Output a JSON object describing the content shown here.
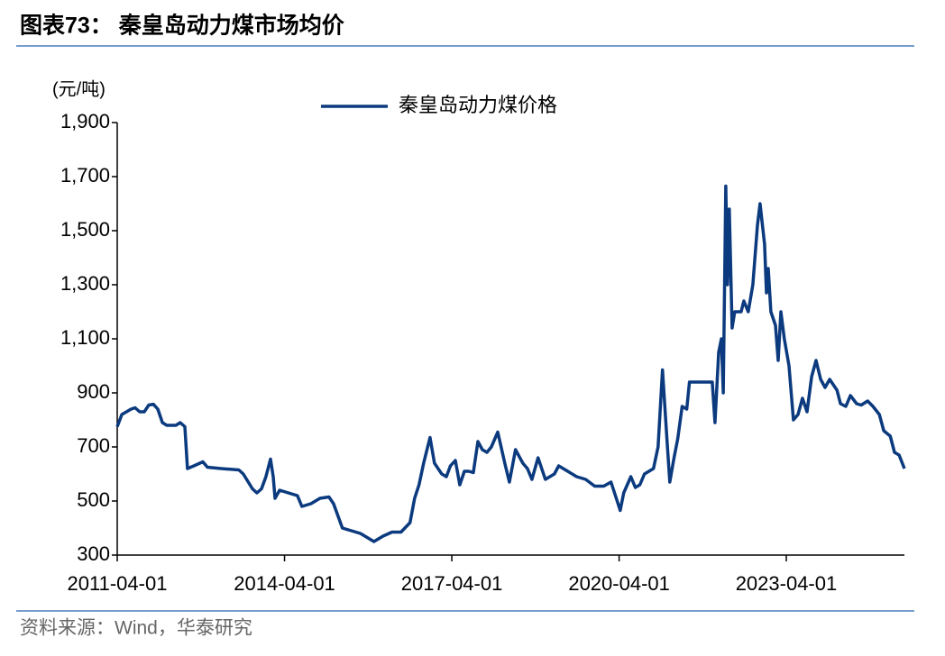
{
  "chart_data": {
    "type": "line",
    "title": "图表73：  秦皇岛动力煤市场均价",
    "y_label": "(元/吨)",
    "source": "资料来源：Wind，华泰研究",
    "x": [
      "2011-04-01",
      "2011-05-01",
      "2011-07-01",
      "2011-07-27",
      "2011-08-26",
      "2011-09-25",
      "2011-10-25",
      "2011-11-24",
      "2011-12-23",
      "2012-01-22",
      "2012-02-20",
      "2012-04-19",
      "2012-05-18",
      "2012-06-17",
      "2012-07-04",
      "2012-08-15",
      "2012-10-13",
      "2012-11-12",
      "2013-02-10",
      "2013-06-06",
      "2013-07-05",
      "2013-09-03",
      "2013-10-02",
      "2013-11-01",
      "2013-11-30",
      "2013-12-30",
      "2014-01-17",
      "2014-01-29",
      "2014-02-28",
      "2014-04-26",
      "2014-06-24",
      "2014-07-24",
      "2014-09-21",
      "2014-11-19",
      "2015-01-17",
      "2015-02-16",
      "2015-04-15",
      "2015-06-13",
      "2015-08-11",
      "2015-10-09",
      "2015-11-08",
      "2016-01-06",
      "2016-03-05",
      "2016-05-03",
      "2016-07-01",
      "2016-07-31",
      "2016-08-29",
      "2016-09-28",
      "2016-11-09",
      "2016-12-08",
      "2017-01-25",
      "2017-02-24",
      "2017-03-23",
      "2017-04-24",
      "2017-05-23",
      "2017-06-22",
      "2017-07-21",
      "2017-08-20",
      "2017-09-19",
      "2017-10-18",
      "2017-11-17",
      "2017-12-16",
      "2018-01-27",
      "2018-03-14",
      "2018-04-13",
      "2018-05-23",
      "2018-07-10",
      "2018-08-09",
      "2018-09-08",
      "2018-10-18",
      "2018-12-05",
      "2019-02-02",
      "2019-03-02",
      "2019-04-30",
      "2019-06-28",
      "2019-08-26",
      "2019-10-24",
      "2019-12-22",
      "2020-02-08",
      "2020-03-08",
      "2020-04-08",
      "2020-05-01",
      "2020-06-17",
      "2020-07-16",
      "2020-08-15",
      "2020-09-14",
      "2020-11-12",
      "2020-12-12",
      "2021-01-10",
      "2021-02-09",
      "2021-02-27",
      "2021-03-27",
      "2021-04-20",
      "2021-05-19",
      "2021-06-18",
      "2021-07-06",
      "2021-12-02",
      "2021-12-20",
      "2022-01-13",
      "2022-01-31",
      "2022-02-12",
      "2022-03-01",
      "2022-03-12",
      "2022-03-24",
      "2022-04-11",
      "2022-04-28",
      "2022-06-09",
      "2022-06-27",
      "2022-07-26",
      "2022-08-25",
      "2022-09-24",
      "2022-10-11",
      "2022-11-10",
      "2022-11-22",
      "2022-12-04",
      "2022-12-21",
      "2023-01-20",
      "2023-02-07",
      "2023-02-25",
      "2023-03-19",
      "2023-04-19",
      "2023-05-18",
      "2023-06-17",
      "2023-07-16",
      "2023-08-15",
      "2023-09-14",
      "2023-10-13",
      "2023-11-12",
      "2023-12-11",
      "2024-01-10",
      "2024-02-27",
      "2024-03-21",
      "2024-04-25",
      "2024-05-25",
      "2024-07-05",
      "2024-08-04",
      "2024-09-15",
      "2024-10-20",
      "2024-12-01",
      "2024-12-30",
      "2025-02-10",
      "2025-03-10",
      "2025-04-09",
      "2025-05-14"
    ],
    "series": [
      {
        "name": "秦皇岛动力煤价格",
        "color": "#0b3a7e",
        "values": [
          775,
          820,
          840,
          845,
          830,
          830,
          855,
          858,
          840,
          790,
          780,
          780,
          790,
          775,
          620,
          630,
          645,
          625,
          620,
          615,
          600,
          545,
          530,
          545,
          590,
          655,
          590,
          510,
          540,
          530,
          520,
          480,
          490,
          510,
          515,
          490,
          400,
          390,
          380,
          360,
          350,
          370,
          385,
          385,
          420,
          510,
          560,
          640,
          735,
          640,
          600,
          590,
          630,
          650,
          560,
          610,
          610,
          605,
          720,
          690,
          680,
          700,
          755,
          640,
          570,
          690,
          640,
          620,
          580,
          660,
          580,
          600,
          630,
          610,
          590,
          580,
          555,
          555,
          570,
          520,
          465,
          530,
          590,
          550,
          560,
          600,
          620,
          700,
          985,
          720,
          570,
          660,
          730,
          850,
          840,
          940,
          940,
          790,
          1050,
          1100,
          900,
          1665,
          1300,
          1580,
          1140,
          1200,
          1200,
          1240,
          1200,
          1300,
          1520,
          1600,
          1450,
          1270,
          1360,
          1200,
          1150,
          1020,
          1200,
          1100,
          1000,
          800,
          820,
          880,
          830,
          960,
          1020,
          950,
          920,
          950,
          910,
          860,
          850,
          890,
          860,
          855,
          870,
          850,
          820,
          760,
          740,
          680,
          670,
          620
        ]
      }
    ],
    "xlim": [
      "2011-04-01",
      "2025-05-14"
    ],
    "xticks": [
      "2011-04-01",
      "2014-04-01",
      "2017-04-01",
      "2020-04-01",
      "2023-04-01"
    ],
    "ylim": [
      300,
      1900
    ],
    "yticks": [
      300,
      500,
      700,
      900,
      {
        "value": 1100,
        "label": "1,100"
      },
      {
        "value": 1300,
        "label": "1,300"
      },
      {
        "value": 1500,
        "label": "1,500"
      },
      {
        "value": 1700,
        "label": "1,700"
      },
      {
        "value": 1900,
        "label": "1,900"
      }
    ],
    "grid": false,
    "legend": "top"
  }
}
